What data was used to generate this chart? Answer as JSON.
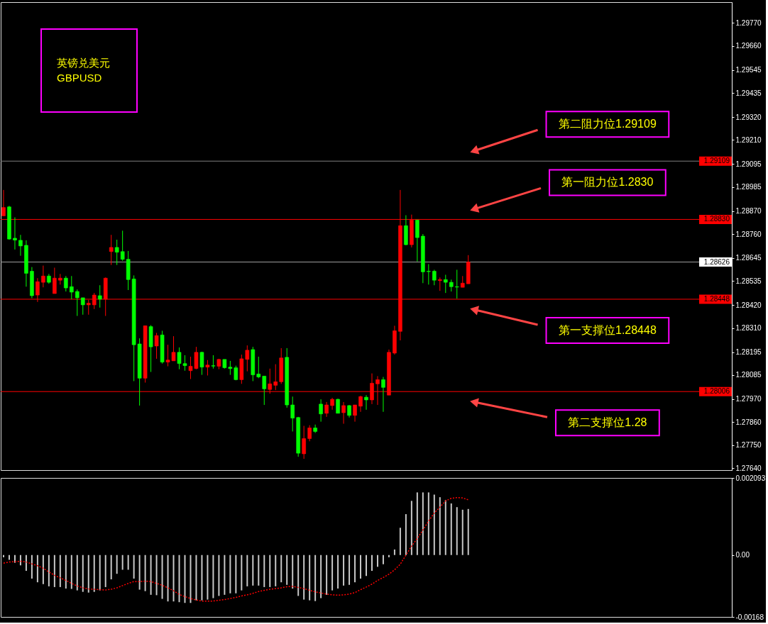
{
  "chart_data": [
    {
      "type": "candlestick",
      "title": "英镑兑美元",
      "subtitle": "GBPUSD",
      "categories": [
        null,
        null,
        null,
        null,
        null,
        null,
        null,
        null,
        null,
        null,
        null,
        null,
        null,
        null,
        null,
        null,
        null,
        null,
        null,
        null,
        null,
        null,
        null,
        null,
        null,
        null,
        null,
        null,
        null,
        null,
        null,
        null,
        null,
        null,
        null,
        null,
        null,
        null,
        null,
        null,
        null,
        null,
        null,
        null,
        null,
        null,
        null,
        null,
        null,
        null,
        null,
        null,
        null,
        null,
        null,
        null,
        null,
        null,
        null,
        null,
        null,
        null,
        null,
        null,
        null,
        null,
        null,
        null,
        null,
        null,
        null,
        null,
        null,
        null,
        null,
        null,
        null,
        null,
        null,
        null,
        null,
        null,
        null,
        null,
        null,
        null,
        null,
        null,
        null,
        null,
        null,
        null,
        null,
        null,
        null,
        null,
        null,
        null,
        null,
        null,
        null,
        null,
        null,
        null,
        null,
        null,
        null,
        null,
        null,
        null,
        null,
        null,
        null,
        null,
        null,
        null,
        null,
        null,
        null,
        null,
        null,
        null,
        null,
        null,
        null,
        null,
        null,
        null,
        null
      ],
      "ohlc": [
        [
          1.28847,
          1.28971,
          1.28847,
          1.28887
        ],
        [
          1.2889,
          1.28895,
          1.28733,
          1.28736
        ],
        [
          1.2874,
          1.2884,
          1.28686,
          1.28731
        ],
        [
          1.2873,
          1.28756,
          1.28656,
          1.28703
        ],
        [
          1.28706,
          1.2873,
          1.28508,
          1.28572
        ],
        [
          1.28582,
          1.28602,
          1.28453,
          1.28465
        ],
        [
          1.28468,
          1.28549,
          1.28435,
          1.28532
        ],
        [
          1.28529,
          1.28609,
          1.28505,
          1.28559
        ],
        [
          1.28559,
          1.28569,
          1.28522,
          1.28529
        ],
        [
          1.28475,
          1.28599,
          1.28475,
          1.28549
        ],
        [
          1.28539,
          1.28569,
          1.28518,
          1.28549
        ],
        [
          1.28549,
          1.28559,
          1.28485,
          1.28502
        ],
        [
          1.28508,
          1.28559,
          1.28448,
          1.28482
        ],
        [
          1.28485,
          1.28495,
          1.28368,
          1.28455
        ],
        [
          1.28455,
          1.28455,
          1.28374,
          1.28421
        ],
        [
          1.28421,
          1.28445,
          1.28374,
          1.28429
        ],
        [
          1.28421,
          1.28478,
          1.28401,
          1.28468
        ],
        [
          1.28465,
          1.28515,
          1.28408,
          1.28448
        ],
        [
          1.28448,
          1.28552,
          1.28368,
          1.28549
        ],
        [
          1.28676,
          1.28756,
          1.28612,
          1.28696
        ],
        [
          1.28696,
          1.28733,
          1.28612,
          1.28673
        ],
        [
          1.28676,
          1.28776,
          1.28632,
          1.28639
        ],
        [
          1.28639,
          1.28679,
          1.28492,
          1.28542
        ],
        [
          1.28545,
          1.28562,
          1.28056,
          1.2823
        ],
        [
          1.28234,
          1.28261,
          1.27939,
          1.2807
        ],
        [
          1.2807,
          1.28321,
          1.28049,
          1.28321
        ],
        [
          1.28317,
          1.28324,
          1.281,
          1.2822
        ],
        [
          1.28224,
          1.28287,
          1.28163,
          1.28274
        ],
        [
          1.28277,
          1.28297,
          1.2814,
          1.28147
        ],
        [
          1.28147,
          1.2823,
          1.28127,
          1.28157
        ],
        [
          1.28153,
          1.28271,
          1.28153,
          1.28194
        ],
        [
          1.28194,
          1.28217,
          1.28113,
          1.2814
        ],
        [
          1.2814,
          1.2818,
          1.28106,
          1.2813
        ],
        [
          1.28106,
          1.28173,
          1.28066,
          1.28127
        ],
        [
          1.28116,
          1.2822,
          1.28113,
          1.28194
        ],
        [
          1.28194,
          1.28197,
          1.28086,
          1.28123
        ],
        [
          1.28123,
          1.28157,
          1.28083,
          1.28133
        ],
        [
          1.2813,
          1.2818,
          1.28116,
          1.28128
        ],
        [
          1.28127,
          1.28163,
          1.28113,
          1.2816
        ],
        [
          1.2816,
          1.2816,
          1.28116,
          1.2812
        ],
        [
          1.28123,
          1.28153,
          1.28086,
          1.28116
        ],
        [
          1.2812,
          1.2813,
          1.2806,
          1.28063
        ],
        [
          1.28063,
          1.28183,
          1.28043,
          1.28163
        ],
        [
          1.2816,
          1.28227,
          1.28103,
          1.28204
        ],
        [
          1.28207,
          1.2822,
          1.28056,
          1.28086
        ],
        [
          1.2809,
          1.28173,
          1.2807,
          1.28076
        ],
        [
          1.2808,
          1.2808,
          1.27942,
          1.28019
        ],
        [
          1.28016,
          1.28116,
          1.27996,
          1.28043
        ],
        [
          1.28036,
          1.28137,
          1.28013,
          1.28053
        ],
        [
          1.28053,
          1.28214,
          1.28043,
          1.28167
        ],
        [
          1.2817,
          1.28214,
          1.27929,
          1.27942
        ],
        [
          1.27942,
          1.27982,
          1.27815,
          1.27879
        ],
        [
          1.27882,
          1.27885,
          1.27694,
          1.27711
        ],
        [
          1.27708,
          1.27842,
          1.27684,
          1.27781
        ],
        [
          1.27781,
          1.27845,
          1.27768,
          1.27832
        ],
        [
          1.27832,
          1.27848,
          1.27808,
          1.27815
        ],
        [
          1.27946,
          1.27969,
          1.27862,
          1.27899
        ],
        [
          1.27902,
          1.27956,
          1.27885,
          1.27942
        ],
        [
          1.27939,
          1.27976,
          1.27919,
          1.27969
        ],
        [
          1.27969,
          1.27972,
          1.27902,
          1.27902
        ],
        [
          1.27905,
          1.27956,
          1.27852,
          1.27939
        ],
        [
          1.27939,
          1.27942,
          1.27882,
          1.27892
        ],
        [
          1.27892,
          1.27942,
          1.27862,
          1.27942
        ],
        [
          1.27936,
          1.27986,
          1.27909,
          1.27982
        ],
        [
          1.27979,
          1.27989,
          1.27919,
          1.27966
        ],
        [
          1.27966,
          1.28093,
          1.27946,
          1.28046
        ],
        [
          1.28043,
          1.2808,
          1.27942,
          1.28063
        ],
        [
          1.28063,
          1.28076,
          1.27909,
          1.28026
        ],
        [
          1.27989,
          1.28207,
          1.27989,
          1.28194
        ],
        [
          1.2819,
          1.28321,
          1.28183,
          1.28297
        ],
        [
          1.28294,
          1.28971,
          1.28251,
          1.288
        ],
        [
          1.288,
          1.2885,
          1.28706,
          1.28709
        ],
        [
          1.28709,
          1.28853,
          1.28696,
          1.28827
        ],
        [
          1.28827,
          1.28827,
          1.28629,
          1.28743
        ],
        [
          1.2875,
          1.2876,
          1.28525,
          1.28579
        ],
        [
          1.28582,
          1.28616,
          1.28518,
          1.2858
        ],
        [
          1.28582,
          1.28589,
          1.28515,
          1.28539
        ],
        [
          1.28537,
          1.28552,
          1.28488,
          1.28542
        ],
        [
          1.28542,
          1.28565,
          1.28478,
          1.28529
        ],
        [
          1.28529,
          1.28542,
          1.28485,
          1.28508
        ],
        [
          1.28508,
          1.28589,
          1.28451,
          1.28506
        ],
        [
          1.28505,
          1.28559,
          1.28505,
          1.28525
        ],
        [
          1.28522,
          1.28659,
          1.28522,
          1.28626
        ],
        null,
        null,
        null,
        null,
        null,
        null,
        null,
        null,
        null,
        null,
        null,
        null,
        null,
        null,
        null,
        null,
        null,
        null,
        null,
        null,
        null,
        null,
        null,
        null,
        null,
        null,
        null,
        null,
        null,
        null,
        null,
        null,
        null,
        null,
        null,
        null,
        null,
        null,
        null,
        null,
        null,
        null,
        null,
        null,
        null,
        null
      ],
      "colors": [
        "#ff0000",
        "#00ff00",
        "#00ff00",
        "#00ff00",
        "#00ff00",
        "#00ff00",
        "#ff0000",
        "#ff0000",
        "#00ff00",
        "#ff0000",
        "#ff0000",
        "#00ff00",
        "#00ff00",
        "#00ff00",
        "#00ff00",
        "#ff0000",
        "#ff0000",
        "#00ff00",
        "#ff0000",
        "#ff0000",
        "#00ff00",
        "#00ff00",
        "#00ff00",
        "#00ff00",
        "#00ff00",
        "#ff0000",
        "#00ff00",
        "#ff0000",
        "#00ff00",
        "#ff0000",
        "#ff0000",
        "#00ff00",
        "#00ff00",
        "#ff0000",
        "#ff0000",
        "#00ff00",
        "#ff0000",
        "#00ff00",
        "#ff0000",
        "#00ff00",
        "#00ff00",
        "#00ff00",
        "#ff0000",
        "#ff0000",
        "#00ff00",
        "#00ff00",
        "#00ff00",
        "#ff0000",
        "#ff0000",
        "#ff0000",
        "#00ff00",
        "#00ff00",
        "#00ff00",
        "#ff0000",
        "#ff0000",
        "#00ff00",
        "#00ff00",
        "#ff0000",
        "#ff0000",
        "#00ff00",
        "#ff0000",
        "#00ff00",
        "#ff0000",
        "#ff0000",
        "#00ff00",
        "#ff0000",
        "#ff0000",
        "#00ff00",
        "#ff0000",
        "#ff0000",
        "#ff0000",
        "#00ff00",
        "#ff0000",
        "#00ff00",
        "#00ff00",
        "#00ff00",
        "#00ff00",
        "#ff0000",
        "#00ff00",
        "#00ff00",
        "#00ff00",
        "#ff0000",
        "#ff0000",
        null,
        null,
        null,
        null,
        null,
        null,
        null,
        null,
        null,
        null,
        null,
        null,
        null,
        null,
        null,
        null,
        null,
        null,
        null,
        null,
        null,
        null,
        null,
        null,
        null,
        null,
        null,
        null,
        null,
        null,
        null,
        null,
        null,
        null,
        null,
        null,
        null,
        null,
        null,
        null,
        null,
        null,
        null,
        null,
        null,
        null
      ],
      "ylim": [
        1.2763,
        1.2987
      ],
      "yticks": [
        {
          "value": 1.2977,
          "label": "1.29770"
        },
        {
          "value": 1.2966,
          "label": "1.29660"
        },
        {
          "value": 1.29545,
          "label": "1.29545"
        },
        {
          "value": 1.29435,
          "label": "1.29435"
        },
        {
          "value": 1.2932,
          "label": "1.29320"
        },
        {
          "value": 1.2921,
          "label": "1.29210"
        },
        {
          "value": 1.29095,
          "label": "1.29095"
        },
        {
          "value": 1.28985,
          "label": "1.28985"
        },
        {
          "value": 1.2887,
          "label": "1.28870"
        },
        {
          "value": 1.2876,
          "label": "1.28760"
        },
        {
          "value": 1.28645,
          "label": "1.28645"
        },
        {
          "value": 1.28535,
          "label": "1.28535"
        },
        {
          "value": 1.2842,
          "label": "1.28420"
        },
        {
          "value": 1.2831,
          "label": "1.28310"
        },
        {
          "value": 1.28195,
          "label": "1.28195"
        },
        {
          "value": 1.28085,
          "label": "1.28085"
        },
        {
          "value": 1.2797,
          "label": "1.27970"
        },
        {
          "value": 1.2786,
          "label": "1.27860"
        },
        {
          "value": 1.2775,
          "label": "1.27750"
        },
        {
          "value": 1.2764,
          "label": "1.27640"
        }
      ],
      "tick_labels": "y",
      "ref_lines": [
        {
          "axis": "y",
          "value": 1.29109,
          "label": "1.29109",
          "color": "#7f7f7f"
        },
        {
          "axis": "y",
          "value": 1.2883,
          "label": "1.28830",
          "color": "#ff0000"
        },
        {
          "axis": "y",
          "value": 1.28626,
          "label": "1.28626",
          "color": "#a0a0a0"
        },
        {
          "axis": "y",
          "value": 1.28448,
          "label": "1.28448",
          "color": "#ff0000"
        },
        {
          "axis": "y",
          "value": 1.28006,
          "label": "1.28006",
          "color": "#ff0000"
        }
      ],
      "annotations": [
        {
          "text": "第二阻力位1.29109",
          "y": 1.29109
        },
        {
          "text": "第一阻力位1.2830",
          "y": 1.2883
        },
        {
          "text": "第一支撑位1.28448",
          "y": 1.28448
        },
        {
          "text": "第二支撑位1.28",
          "y": 1.28006
        }
      ]
    },
    {
      "type": "bar",
      "categories": [
        null,
        null,
        null,
        null,
        null,
        null,
        null,
        null,
        null,
        null,
        null,
        null,
        null,
        null,
        null,
        null,
        null,
        null,
        null,
        null,
        null,
        null,
        null,
        null,
        null,
        null,
        null,
        null,
        null,
        null,
        null,
        null,
        null,
        null,
        null,
        null,
        null,
        null,
        null,
        null,
        null,
        null,
        null,
        null,
        null,
        null,
        null,
        null,
        null,
        null,
        null,
        null,
        null,
        null,
        null,
        null,
        null,
        null,
        null,
        null,
        null,
        null,
        null,
        null,
        null,
        null,
        null,
        null,
        null,
        null,
        null,
        null,
        null,
        null,
        null,
        null,
        null,
        null,
        null,
        null,
        null,
        null,
        null,
        null,
        null,
        null,
        null,
        null,
        null,
        null,
        null,
        null,
        null,
        null,
        null,
        null,
        null,
        null,
        null,
        null,
        null,
        null,
        null,
        null,
        null,
        null,
        null,
        null,
        null,
        null,
        null,
        null,
        null,
        null,
        null,
        null,
        null,
        null,
        null,
        null,
        null,
        null,
        null,
        null,
        null,
        null,
        null,
        null,
        null
      ],
      "series": [
        {
          "type": "bar",
          "color": "#c8c8c8",
          "values": [
            -6e-05,
            -0.00013,
            -0.00021,
            -0.00028,
            -0.00043,
            -0.00064,
            -0.00074,
            -0.00079,
            -0.00085,
            -0.00087,
            -0.00087,
            -0.00091,
            -0.00092,
            -0.00096,
            -0.001,
            -0.00102,
            -0.001,
            -0.00096,
            -0.00087,
            -0.00066,
            -0.00051,
            -0.0004,
            -0.0004,
            -0.00064,
            -0.00094,
            -0.00098,
            -0.00108,
            -0.00109,
            -0.00119,
            -0.00126,
            -0.00126,
            -0.00128,
            -0.0013,
            -0.0013,
            -0.00123,
            -0.00123,
            -0.00121,
            -0.00117,
            -0.00111,
            -0.00108,
            -0.00104,
            -0.00104,
            -0.00096,
            -0.00085,
            -0.00083,
            -0.00083,
            -0.00087,
            -0.00087,
            -0.00085,
            -0.00074,
            -0.00081,
            -0.00091,
            -0.00111,
            -0.00121,
            -0.00123,
            -0.00125,
            -0.00117,
            -0.00108,
            -0.00096,
            -0.00091,
            -0.00083,
            -0.00081,
            -0.00074,
            -0.00064,
            -0.00057,
            -0.00043,
            -0.00032,
            -0.00025,
            -6e-05,
            0.00015,
            0.00074,
            0.00111,
            0.00147,
            0.0017,
            0.0017,
            0.0017,
            0.00164,
            0.00157,
            0.00149,
            0.0014,
            0.0013,
            0.00123,
            0.00125,
            null,
            null,
            null,
            null,
            null,
            null,
            null,
            null,
            null,
            null,
            null,
            null,
            null,
            null,
            null,
            null,
            null,
            null,
            null,
            null,
            null,
            null,
            null,
            null,
            null,
            null,
            null,
            null,
            null,
            null,
            null,
            null,
            null,
            null,
            null,
            null,
            null,
            null,
            null,
            null,
            null,
            null,
            null,
            null,
            null,
            null
          ]
        },
        {
          "type": "line",
          "color": "#ff0000",
          "line_style": "dotted",
          "values": [
            -0.00022,
            -0.00019,
            -0.00018,
            -0.00017,
            -0.00019,
            -0.00024,
            -0.00029,
            -0.00036,
            -0.00046,
            -0.00055,
            -0.00062,
            -0.00069,
            -0.00077,
            -0.00084,
            -0.00089,
            -0.00092,
            -0.00093,
            -0.00094,
            -0.00095,
            -0.00093,
            -0.00089,
            -0.00083,
            -0.00077,
            -0.00072,
            -0.00072,
            -0.00071,
            -0.00072,
            -0.00077,
            -0.00082,
            -0.00089,
            -0.00097,
            -0.00107,
            -0.00113,
            -0.00118,
            -0.00122,
            -0.00125,
            -0.00125,
            -0.00125,
            -0.00123,
            -0.00121,
            -0.00118,
            -0.00115,
            -0.00111,
            -0.00108,
            -0.00104,
            -0.00099,
            -0.00096,
            -0.00093,
            -0.00091,
            -0.00089,
            -0.00086,
            -0.00085,
            -0.00088,
            -0.00091,
            -0.00096,
            -0.001,
            -0.00103,
            -0.00106,
            -0.00108,
            -0.00109,
            -0.00108,
            -0.00106,
            -0.00102,
            -0.00094,
            -0.00087,
            -0.00079,
            -0.00069,
            -0.00061,
            -0.00052,
            -0.0004,
            -0.00025,
            0.0,
            0.00024,
            0.00045,
            0.00068,
            0.00092,
            0.00114,
            0.0013,
            0.00147,
            0.00154,
            0.00156,
            0.00155,
            0.0015,
            null,
            null,
            null,
            null,
            null,
            null,
            null,
            null,
            null,
            null,
            null,
            null,
            null,
            null,
            null,
            null,
            null,
            null,
            null,
            null,
            null,
            null,
            null,
            null,
            null,
            null,
            null,
            null,
            null,
            null,
            null,
            null,
            null,
            null,
            null,
            null,
            null,
            null,
            null,
            null,
            null,
            null,
            null,
            null,
            null,
            null
          ]
        }
      ],
      "ylim": [
        -0.00168,
        0.002093
      ],
      "yticks": [
        0.002093,
        {
          "value": 0,
          "label": "0.00"
        },
        -0.00168
      ],
      "tick_labels": "y"
    }
  ]
}
